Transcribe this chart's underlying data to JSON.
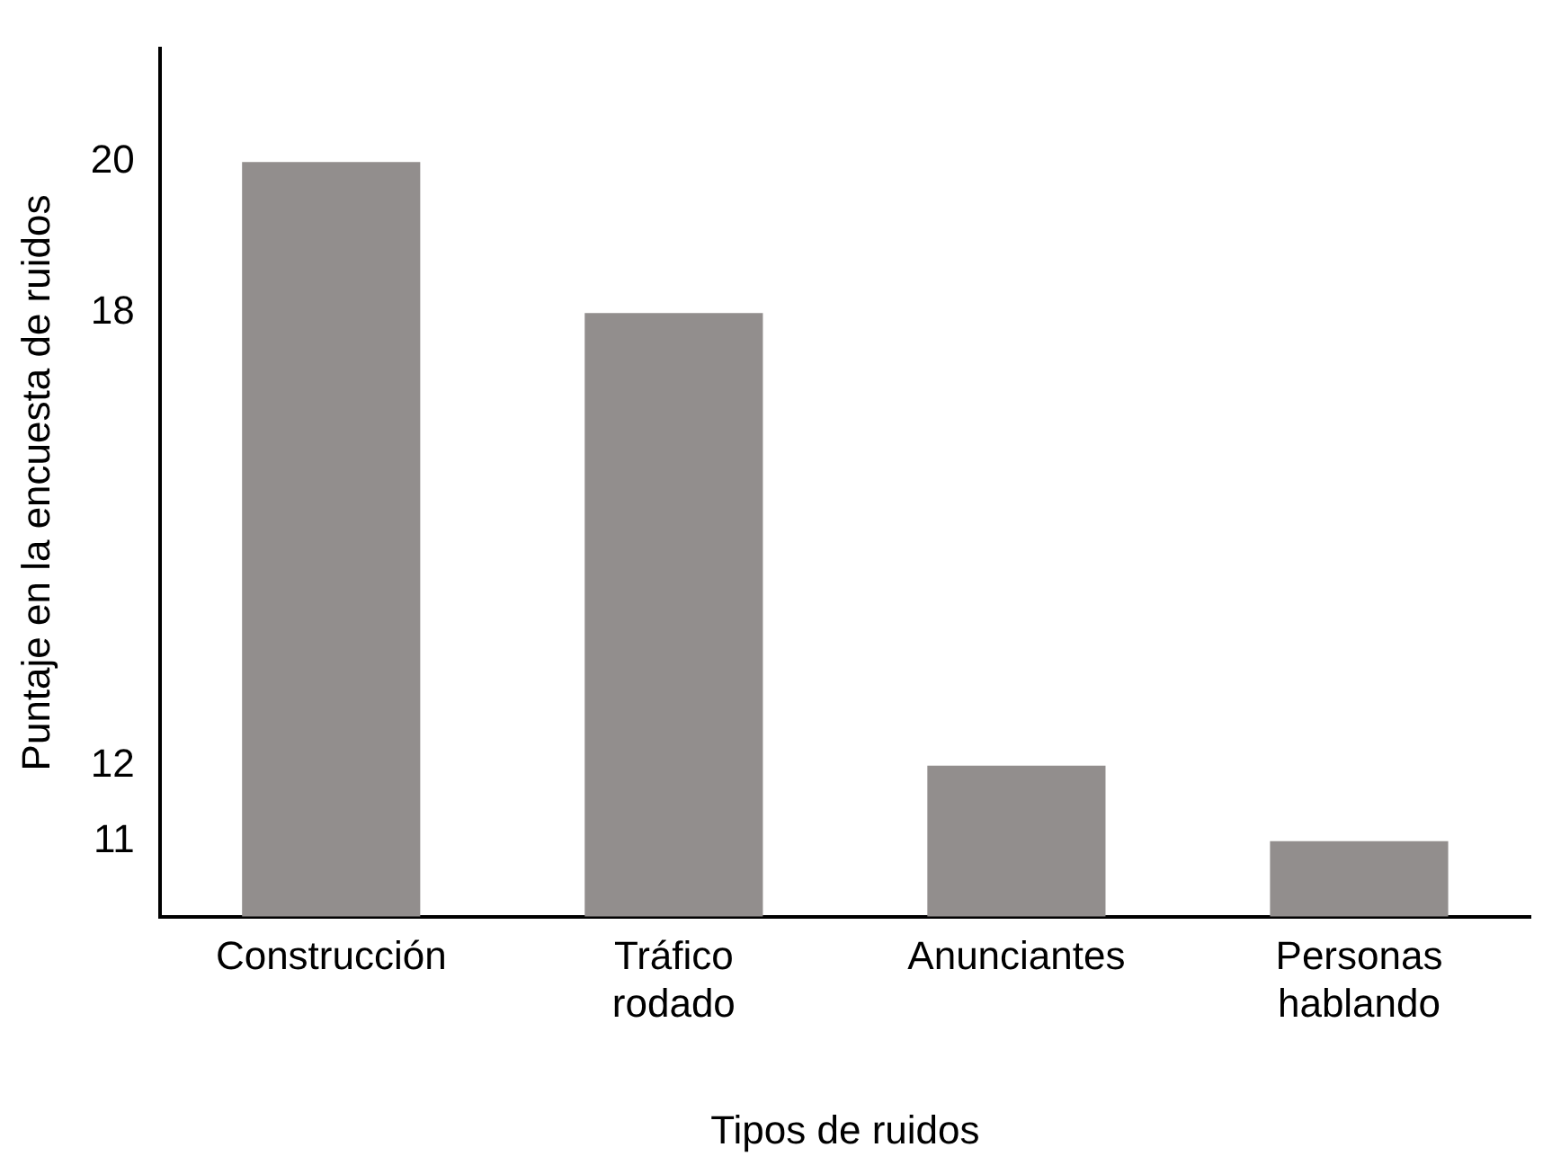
{
  "chart_data": {
    "type": "bar",
    "xlabel": "Tipos de ruidos",
    "ylabel": "Puntaje en la encuesta de ruidos",
    "categories": [
      "Construcción",
      "Tráfico rodado",
      "Anunciantes",
      "Personas hablando"
    ],
    "values": [
      20,
      18,
      12,
      11
    ],
    "color": "#928e8d",
    "ylim": [
      10,
      21.5
    ],
    "yticks": [
      11,
      12,
      18,
      20
    ],
    "grid": false,
    "legend": false
  }
}
